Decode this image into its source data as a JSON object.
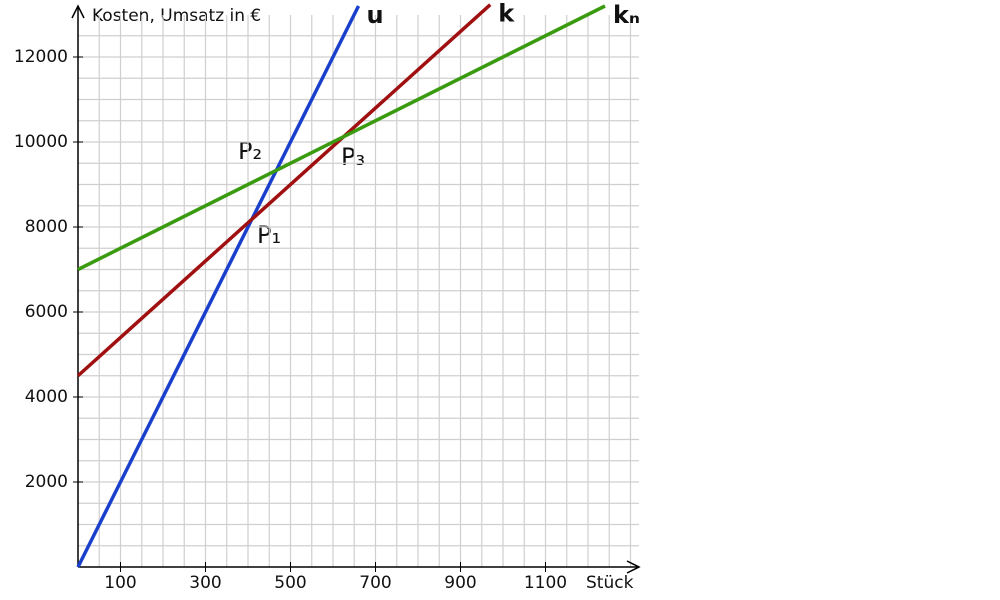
{
  "chart_data": {
    "type": "line",
    "y_label": "Kosten, Umsatz in €",
    "x_label": "Stück",
    "xlim": [
      0,
      1320
    ],
    "ylim": [
      0,
      13200
    ],
    "xticks": [
      100,
      300,
      500,
      700,
      900,
      1100
    ],
    "yticks": [
      2000,
      4000,
      6000,
      8000,
      10000,
      12000
    ],
    "grid": true,
    "series": [
      {
        "name": "u",
        "color": "#1a3fcc",
        "x": [
          0,
          660
        ],
        "values": [
          0,
          13200
        ]
      },
      {
        "name": "k",
        "color": "#a01010",
        "x": [
          0,
          970
        ],
        "values": [
          4500,
          13230
        ]
      },
      {
        "name": "kₙ",
        "color": "#3a9a10",
        "x": [
          0,
          1240
        ],
        "values": [
          7000,
          13200
        ]
      }
    ],
    "annotations": [
      "P₁",
      "P₂",
      "P₃"
    ]
  }
}
